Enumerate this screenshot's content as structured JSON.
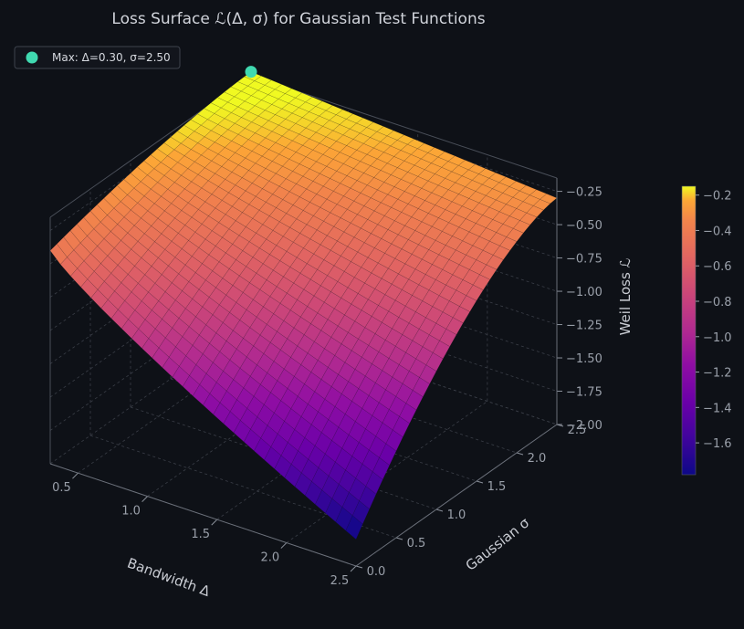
{
  "chart_data": {
    "type": "surface3d",
    "title": "Loss Surface ℒ(Δ, σ) for Gaussian Test Functions",
    "xlabel": "Bandwidth Δ",
    "ylabel": "Gaussian σ",
    "zlabel": "Weil Loss ℒ",
    "x_range": [
      0.3,
      2.5
    ],
    "y_range": [
      0.0,
      2.5
    ],
    "zlim": [
      -2.0,
      -0.15
    ],
    "x_ticks": [
      "0.5",
      "1.0",
      "1.5",
      "2.0",
      "2.5"
    ],
    "y_ticks": [
      "0.0",
      "0.5",
      "1.0",
      "1.5",
      "2.0",
      "2.5"
    ],
    "z_ticks": [
      "−2.00",
      "−1.75",
      "−1.50",
      "−1.25",
      "−1.00",
      "−0.75",
      "−0.50",
      "−0.25"
    ],
    "corner_values": [
      {
        "x": 0.3,
        "y": 2.5,
        "z": -0.12
      },
      {
        "x": 0.3,
        "y": 0.0,
        "z": -0.4
      },
      {
        "x": 2.5,
        "y": 2.5,
        "z": -0.3
      },
      {
        "x": 2.5,
        "y": 0.0,
        "z": -1.8
      }
    ],
    "colorbar": {
      "colormap": "plasma",
      "range": [
        -1.78,
        -0.15
      ],
      "ticks": [
        "−1.6",
        "−1.4",
        "−1.2",
        "−1.0",
        "−0.8",
        "−0.6",
        "−0.4",
        "−0.2"
      ]
    },
    "max_point": {
      "x": 0.3,
      "y": 2.5,
      "z": -0.12,
      "color": "#40d9b0"
    },
    "legend": {
      "label": "Max: Δ=0.30, σ=2.50",
      "placement": "top-left"
    },
    "grid": true
  },
  "colors": {
    "background": "#0e1117",
    "pane_lines": "#3a3e47",
    "marker": "#40d9b0"
  }
}
